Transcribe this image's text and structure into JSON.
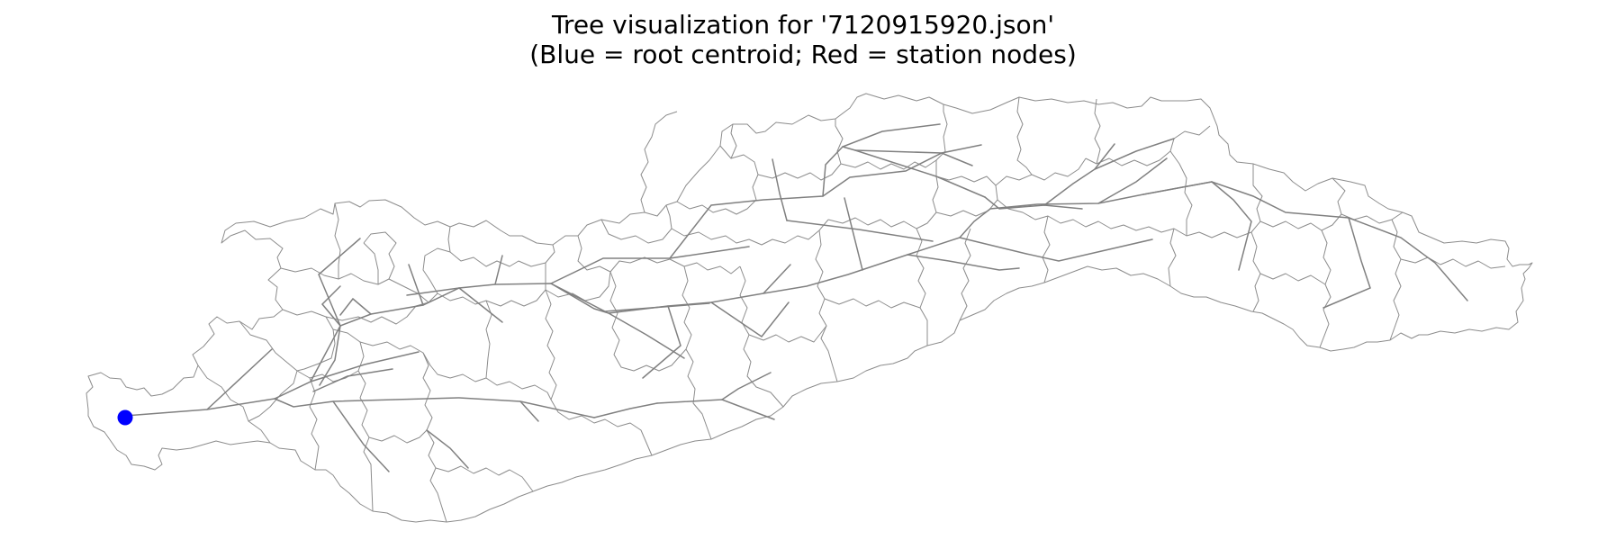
{
  "figure": {
    "title_line_1": "Tree visualization for '7120915920.json'",
    "title_line_2": "(Blue = root centroid; Red = station nodes)"
  },
  "legend_colors": {
    "root_centroid": "#0000ff",
    "station_nodes": "#ff0000"
  },
  "colors": {
    "boundary": "#8c8c8c",
    "edge": "#808080"
  },
  "tree": {
    "root": "root",
    "station_count": 0
  }
}
